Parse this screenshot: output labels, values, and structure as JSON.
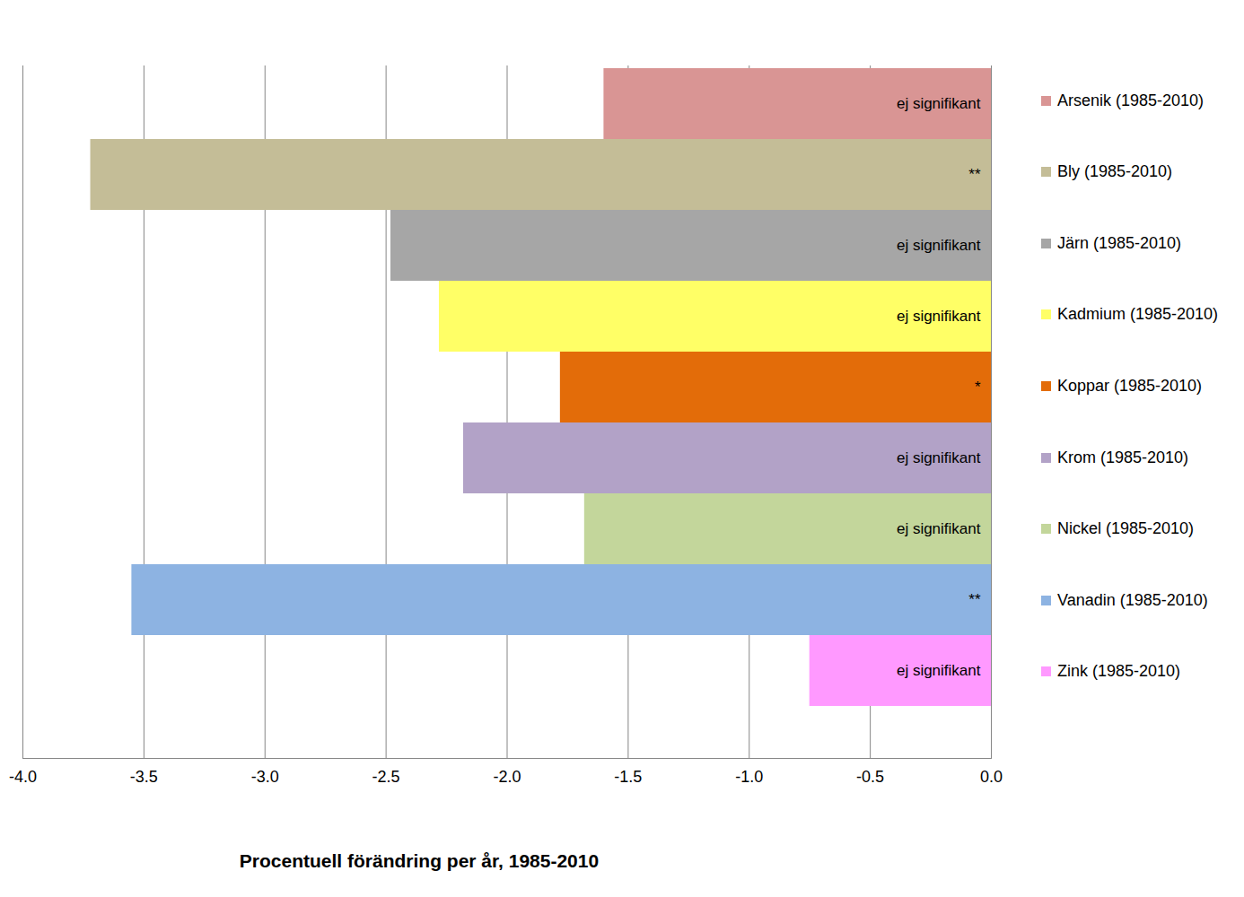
{
  "chart_data": {
    "type": "bar",
    "orientation": "horizontal",
    "x_label": "Procentuell förändring per år, 1985-2010",
    "categories": [
      "Arsenik (1985-2010)",
      "Bly (1985-2010)",
      "Järn (1985-2010)",
      "Kadmium (1985-2010)",
      "Koppar (1985-2010)",
      "Krom (1985-2010)",
      "Nickel (1985-2010)",
      "Vanadin (1985-2010)",
      "Zink (1985-2010)"
    ],
    "values": [
      -1.6,
      -3.72,
      -2.48,
      -2.28,
      -1.78,
      -2.18,
      -1.68,
      -3.55,
      -0.75
    ],
    "colors": [
      "#d99594",
      "#c4bd97",
      "#a6a6a6",
      "#ffff66",
      "#e36c09",
      "#b2a2c7",
      "#c3d69b",
      "#8db3e2",
      "#ff99ff"
    ],
    "annotations": [
      "ej signifikant",
      "**",
      "ej signifikant",
      "ej signifikant",
      "*",
      "ej signifikant",
      "ej signifikant",
      "**",
      "ej signifikant"
    ],
    "xlim": [
      -4,
      0
    ],
    "xticks": [
      {
        "value": -4,
        "label": "-4.0"
      },
      {
        "value": -3.5,
        "label": "-3.5"
      },
      {
        "value": -3,
        "label": "-3.0"
      },
      {
        "value": -2.5,
        "label": "-2.5"
      },
      {
        "value": -2,
        "label": "-2.0"
      },
      {
        "value": -1.5,
        "label": "-1.5"
      },
      {
        "value": -1,
        "label": "-1.0"
      },
      {
        "value": -0.5,
        "label": "-0.5"
      },
      {
        "value": 0,
        "label": "0.0"
      }
    ],
    "grid": true,
    "legend": "right",
    "tick_labels": "x"
  }
}
